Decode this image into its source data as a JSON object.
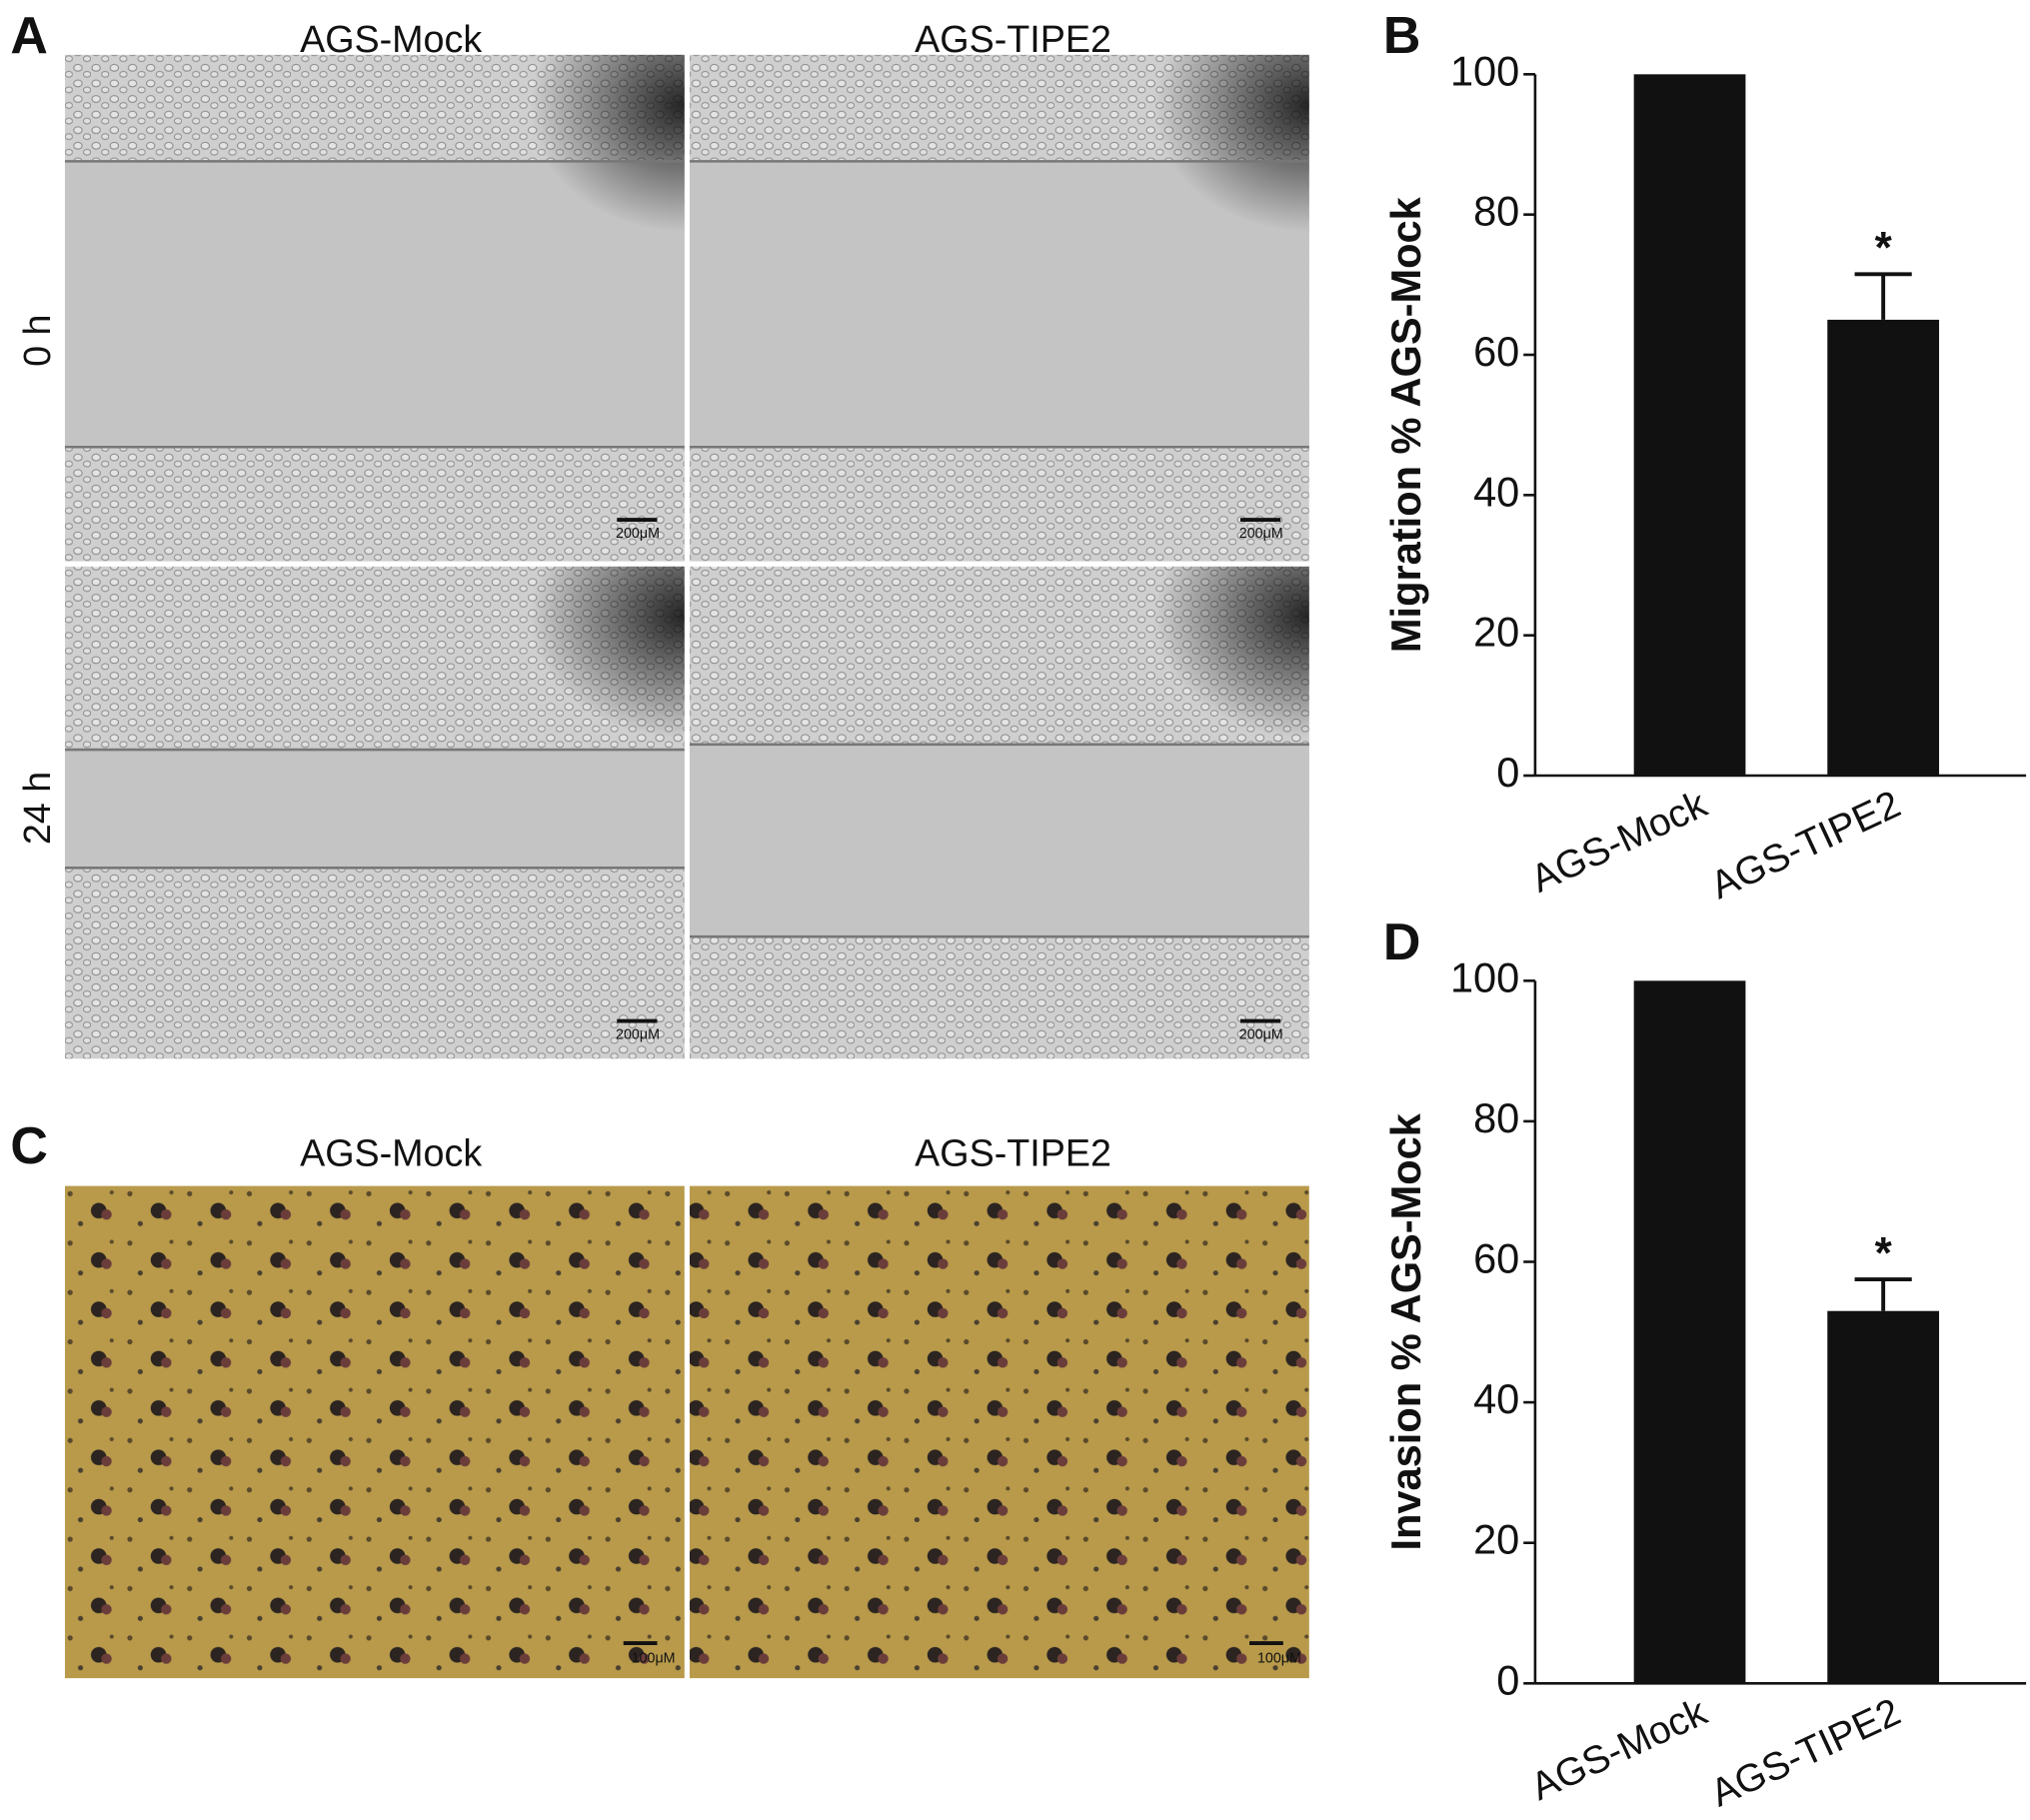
{
  "panels": {
    "A": {
      "letter": "A",
      "columns": [
        "AGS-Mock",
        "AGS-TIPE2"
      ],
      "rows": [
        "0 h",
        "24 h"
      ],
      "scale_bar": "200μM"
    },
    "C": {
      "letter": "C",
      "columns": [
        "AGS-Mock",
        "AGS-TIPE2"
      ],
      "scale_bar": "100μM"
    }
  },
  "chart_data": [
    {
      "type": "bar",
      "panel": "B",
      "ylabel": "Migration % AGS-Mock",
      "categories": [
        "AGS-Mock",
        "AGS-TIPE2"
      ],
      "values": [
        100,
        65
      ],
      "errors": [
        null,
        6.5
      ],
      "value_annotations": [
        null,
        "*"
      ],
      "color": "#111111",
      "ylim": [
        0,
        100
      ],
      "yticks": [
        0,
        20,
        40,
        60,
        80,
        100
      ]
    },
    {
      "type": "bar",
      "panel": "D",
      "ylabel": "Invasion % AGS-Mock",
      "categories": [
        "AGS-Mock",
        "AGS-TIPE2"
      ],
      "values": [
        100,
        53
      ],
      "errors": [
        null,
        4.5
      ],
      "value_annotations": [
        null,
        "*"
      ],
      "color": "#111111",
      "ylim": [
        0,
        100
      ],
      "yticks": [
        0,
        20,
        40,
        60,
        80,
        100
      ]
    }
  ]
}
